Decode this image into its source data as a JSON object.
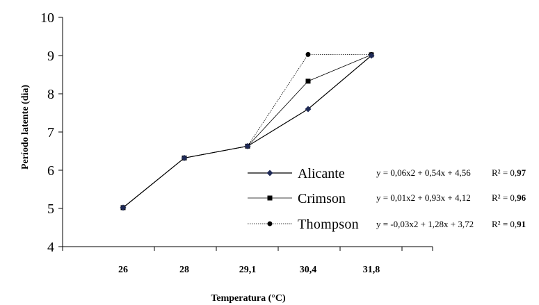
{
  "chart_data": {
    "type": "line",
    "title": "",
    "xlabel": "Temperatura (°C)",
    "ylabel": "Período latente (dia)",
    "categories": [
      "26",
      "28",
      "29,1",
      "30,4",
      "31,8"
    ],
    "ylim": [
      4,
      10
    ],
    "yticks": [
      "4",
      "5",
      "6",
      "7",
      "8",
      "9",
      "10"
    ],
    "grid": false,
    "legend_position": "lower-right",
    "series": [
      {
        "name": "Alicante",
        "marker": "diamond",
        "color": "#1f2a55",
        "values": [
          5.02,
          6.32,
          6.63,
          7.6,
          9.0
        ],
        "equation": "y = 0,06x2 + 0,54x + 4,56",
        "r2_label": "R² = 0,",
        "r2_value": "97"
      },
      {
        "name": "Crimson",
        "marker": "square",
        "color": "#000000",
        "values": [
          5.02,
          6.32,
          6.63,
          8.33,
          9.02
        ],
        "equation": "y = 0,01x2 + 0,93x + 4,12",
        "r2_label": "R² = 0,",
        "r2_value": "96"
      },
      {
        "name": "Thompson",
        "marker": "circle",
        "color": "#000000",
        "values": [
          5.02,
          6.32,
          6.63,
          9.03,
          9.03
        ],
        "equation": "y = -0,03x2 + 1,28x + 3,72",
        "r2_label": "R² = 0,",
        "r2_value": "91"
      }
    ]
  }
}
